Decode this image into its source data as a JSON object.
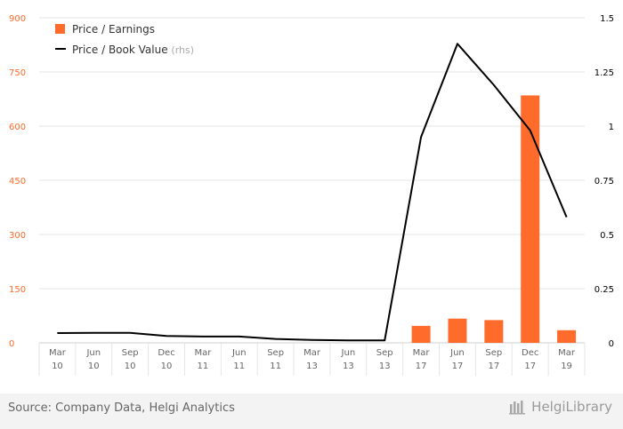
{
  "chart_data": {
    "type": "bar+line",
    "categories": [
      [
        "Mar",
        "10"
      ],
      [
        "Jun",
        "10"
      ],
      [
        "Sep",
        "10"
      ],
      [
        "Dec",
        "10"
      ],
      [
        "Mar",
        "11"
      ],
      [
        "Jun",
        "11"
      ],
      [
        "Sep",
        "11"
      ],
      [
        "Mar",
        "13"
      ],
      [
        "Jun",
        "13"
      ],
      [
        "Sep",
        "13"
      ],
      [
        "Mar",
        "17"
      ],
      [
        "Jun",
        "17"
      ],
      [
        "Sep",
        "17"
      ],
      [
        "Dec",
        "17"
      ],
      [
        "Mar",
        "19"
      ]
    ],
    "series": [
      {
        "name": "Price / Earnings",
        "kind": "bar",
        "axis": "left",
        "color": "#ff6b2b",
        "values": [
          null,
          null,
          null,
          null,
          null,
          null,
          null,
          null,
          null,
          null,
          47,
          67,
          63,
          685,
          35
        ]
      },
      {
        "name": "Price / Book Value",
        "kind": "line",
        "axis": "right",
        "color": "#000000",
        "values": [
          0.045,
          0.046,
          0.046,
          0.032,
          0.029,
          0.029,
          0.018,
          0.013,
          0.011,
          0.011,
          0.95,
          1.38,
          1.19,
          0.98,
          0.58
        ]
      }
    ],
    "legend": [
      {
        "label": "Price / Earnings",
        "suffix": ""
      },
      {
        "label": "Price / Book Value",
        "suffix": "(rhs)"
      }
    ],
    "legend_position": "top-left",
    "y_left": {
      "ticks": [
        "0",
        "150",
        "300",
        "450",
        "600",
        "750",
        "900"
      ],
      "ylim": [
        0,
        900
      ],
      "color": "#ff6b2b"
    },
    "y_right": {
      "ticks": [
        "0",
        "0.25",
        "0.5",
        "0.75",
        "1",
        "1.25",
        "1.5"
      ],
      "ylim": [
        0,
        1.5
      ],
      "color": "#000000"
    },
    "grid": true
  },
  "footer": {
    "source": "Source: Company Data, Helgi Analytics",
    "brand": "HelgiLibrary"
  }
}
